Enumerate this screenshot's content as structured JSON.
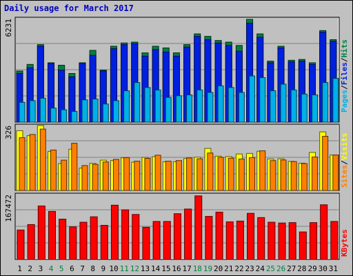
{
  "title": "Daily usage for March 2017",
  "colors": {
    "background": "#c0c0c0",
    "title": "#0000c0",
    "hits": "#008040",
    "files": "#0020e0",
    "pages": "#00b0e8",
    "visits": "#ffff00",
    "sites": "#ff8000",
    "kbytes": "#ff0000",
    "weekend_label": "#008040"
  },
  "chart_data": [
    {
      "type": "bar",
      "panel": "hits-files-pages",
      "max_label": "6231",
      "ylim": [
        0,
        6231
      ],
      "legend": {
        "pages": "Pages",
        "sep1": "/",
        "files": "Files",
        "sep2": "/",
        "hits": "Hits"
      },
      "categories": [
        "1",
        "2",
        "3",
        "4",
        "5",
        "6",
        "7",
        "8",
        "9",
        "10",
        "11",
        "12",
        "13",
        "14",
        "15",
        "16",
        "17",
        "18",
        "19",
        "20",
        "21",
        "22",
        "23",
        "24",
        "25",
        "26",
        "27",
        "28",
        "29",
        "30",
        "31"
      ],
      "series": [
        {
          "name": "Hits",
          "values": [
            3100,
            3500,
            4700,
            3600,
            3450,
            2950,
            3600,
            4350,
            3150,
            4600,
            4800,
            4850,
            4200,
            4600,
            4500,
            4200,
            4700,
            5350,
            5200,
            4950,
            4850,
            4650,
            6231,
            5350,
            3700,
            4600,
            3750,
            3800,
            3600,
            5550,
            5000
          ]
        },
        {
          "name": "Files",
          "values": [
            2950,
            3300,
            4600,
            3550,
            3150,
            2750,
            3550,
            4050,
            3100,
            4450,
            4700,
            4750,
            4000,
            4400,
            4250,
            4000,
            4550,
            5200,
            5000,
            4800,
            4650,
            4300,
            6000,
            5150,
            3600,
            4500,
            3650,
            3700,
            3500,
            5450,
            4900
          ]
        },
        {
          "name": "Pages",
          "values": [
            1200,
            1300,
            1450,
            850,
            750,
            650,
            1350,
            1400,
            1100,
            1300,
            1900,
            2400,
            2100,
            1950,
            1500,
            1600,
            1650,
            1950,
            1800,
            2200,
            2100,
            1800,
            2800,
            2700,
            1900,
            2300,
            1950,
            1700,
            1650,
            2400,
            2650
          ]
        }
      ]
    },
    {
      "type": "bar",
      "panel": "visits-sites",
      "max_label": "326",
      "ylim": [
        0,
        326
      ],
      "legend": {
        "sites": "Sites",
        "sep": "/",
        "visits": "Visits"
      },
      "categories": [
        "1",
        "2",
        "3",
        "4",
        "5",
        "6",
        "7",
        "8",
        "9",
        "10",
        "11",
        "12",
        "13",
        "14",
        "15",
        "16",
        "17",
        "18",
        "19",
        "20",
        "21",
        "22",
        "23",
        "24",
        "25",
        "26",
        "27",
        "28",
        "29",
        "30",
        "31"
      ],
      "series": [
        {
          "name": "Visits",
          "values": [
            300,
            275,
            326,
            196,
            135,
            207,
            112,
            136,
            152,
            150,
            164,
            142,
            166,
            170,
            144,
            144,
            160,
            167,
            211,
            172,
            170,
            183,
            186,
            197,
            158,
            159,
            146,
            137,
            191,
            294,
            178
          ]
        },
        {
          "name": "Sites",
          "values": [
            265,
            281,
            308,
            203,
            152,
            237,
            125,
            131,
            143,
            156,
            165,
            147,
            161,
            177,
            147,
            150,
            163,
            159,
            188,
            166,
            162,
            158,
            165,
            199,
            150,
            153,
            145,
            135,
            168,
            272,
            178
          ]
        }
      ]
    },
    {
      "type": "bar",
      "panel": "kbytes",
      "max_label": "167472",
      "ylim": [
        0,
        167472
      ],
      "legend": {
        "kbytes": "KBytes"
      },
      "categories": [
        "1",
        "2",
        "3",
        "4",
        "5",
        "6",
        "7",
        "8",
        "9",
        "10",
        "11",
        "12",
        "13",
        "14",
        "15",
        "16",
        "17",
        "18",
        "19",
        "20",
        "21",
        "22",
        "23",
        "24",
        "25",
        "26",
        "27",
        "28",
        "29",
        "30",
        "31"
      ],
      "series": [
        {
          "name": "KBytes",
          "values": [
            76000,
            90000,
            138000,
            124000,
            104000,
            84000,
            96000,
            110000,
            88000,
            140000,
            128000,
            116000,
            83000,
            98000,
            98000,
            118000,
            130000,
            164000,
            111000,
            122000,
            97000,
            99000,
            119000,
            108000,
            96000,
            94000,
            95000,
            71000,
            95000,
            141000,
            98000
          ]
        }
      ]
    }
  ],
  "days": [
    {
      "label": "1",
      "weekend": false
    },
    {
      "label": "2",
      "weekend": false
    },
    {
      "label": "3",
      "weekend": false
    },
    {
      "label": "4",
      "weekend": true
    },
    {
      "label": "5",
      "weekend": true
    },
    {
      "label": "6",
      "weekend": false
    },
    {
      "label": "7",
      "weekend": false
    },
    {
      "label": "8",
      "weekend": false
    },
    {
      "label": "9",
      "weekend": false
    },
    {
      "label": "10",
      "weekend": false
    },
    {
      "label": "11",
      "weekend": true
    },
    {
      "label": "12",
      "weekend": true
    },
    {
      "label": "13",
      "weekend": false
    },
    {
      "label": "14",
      "weekend": false
    },
    {
      "label": "15",
      "weekend": false
    },
    {
      "label": "16",
      "weekend": false
    },
    {
      "label": "17",
      "weekend": false
    },
    {
      "label": "18",
      "weekend": true
    },
    {
      "label": "19",
      "weekend": true
    },
    {
      "label": "20",
      "weekend": false
    },
    {
      "label": "21",
      "weekend": false
    },
    {
      "label": "22",
      "weekend": false
    },
    {
      "label": "23",
      "weekend": false
    },
    {
      "label": "24",
      "weekend": false
    },
    {
      "label": "25",
      "weekend": true
    },
    {
      "label": "26",
      "weekend": true
    },
    {
      "label": "27",
      "weekend": false
    },
    {
      "label": "28",
      "weekend": false
    },
    {
      "label": "29",
      "weekend": false
    },
    {
      "label": "30",
      "weekend": false
    },
    {
      "label": "31",
      "weekend": false
    }
  ]
}
